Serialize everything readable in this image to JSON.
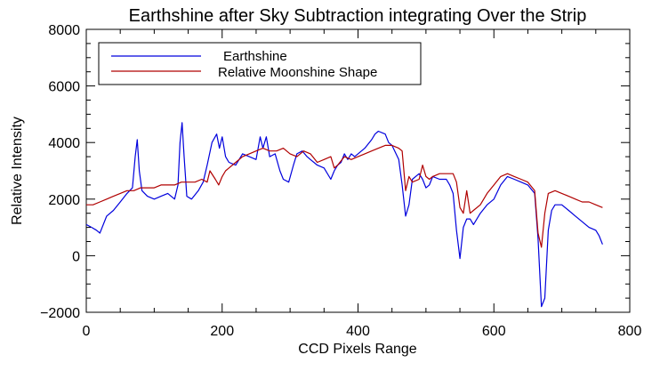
{
  "chart_data": {
    "type": "line",
    "title": "Earthshine after Sky Subtraction integrating Over the Strip",
    "xlabel": "CCD Pixels Range",
    "ylabel": "Relative Intensity",
    "xlim": [
      0,
      800
    ],
    "ylim": [
      -2000,
      8000
    ],
    "x_ticks": [
      0,
      200,
      400,
      600,
      800
    ],
    "y_ticks": [
      -2000,
      0,
      2000,
      4000,
      6000,
      8000
    ],
    "x_tick_labels": [
      "0",
      "200",
      "400",
      "600",
      "800"
    ],
    "y_tick_labels": [
      "−2000",
      "0",
      "2000",
      "4000",
      "6000",
      "8000"
    ],
    "grid": false,
    "legend_position": "top-left",
    "series": [
      {
        "name": "Earthshine",
        "color": "#0000dd",
        "x": [
          0,
          8,
          15,
          20,
          30,
          40,
          50,
          60,
          68,
          72,
          75,
          78,
          82,
          90,
          100,
          110,
          120,
          130,
          135,
          138,
          141,
          144,
          148,
          155,
          165,
          172,
          178,
          185,
          192,
          196,
          200,
          205,
          210,
          220,
          230,
          240,
          250,
          256,
          260,
          265,
          270,
          278,
          285,
          290,
          298,
          305,
          310,
          318,
          325,
          330,
          340,
          350,
          360,
          365,
          370,
          375,
          380,
          385,
          390,
          395,
          400,
          410,
          420,
          425,
          430,
          440,
          445,
          450,
          460,
          465,
          470,
          475,
          480,
          490,
          495,
          500,
          505,
          510,
          520,
          530,
          535,
          540,
          545,
          550,
          555,
          560,
          565,
          570,
          580,
          590,
          600,
          610,
          620,
          630,
          640,
          650,
          660,
          665,
          670,
          675,
          680,
          685,
          690,
          700,
          710,
          720,
          730,
          740,
          750,
          755,
          760
        ],
        "y": [
          1100,
          1000,
          900,
          800,
          1400,
          1600,
          1900,
          2200,
          2400,
          3500,
          4100,
          3000,
          2300,
          2100,
          2000,
          2100,
          2200,
          2000,
          2500,
          4000,
          4700,
          3500,
          2100,
          2000,
          2300,
          2600,
          3200,
          4000,
          4300,
          3800,
          4200,
          3500,
          3300,
          3200,
          3600,
          3500,
          3400,
          4200,
          3800,
          4200,
          3500,
          3600,
          3000,
          2700,
          2600,
          3200,
          3600,
          3700,
          3500,
          3400,
          3200,
          3100,
          2700,
          3000,
          3200,
          3300,
          3600,
          3400,
          3600,
          3500,
          3600,
          3800,
          4100,
          4300,
          4400,
          4300,
          4000,
          3900,
          3400,
          2500,
          1400,
          1800,
          2700,
          2900,
          2700,
          2400,
          2500,
          2800,
          2700,
          2700,
          2500,
          2200,
          900,
          -100,
          1000,
          1300,
          1300,
          1100,
          1500,
          1800,
          2000,
          2500,
          2800,
          2700,
          2600,
          2500,
          2200,
          600,
          -1800,
          -1500,
          900,
          1600,
          1800,
          1800,
          1600,
          1400,
          1200,
          1000,
          900,
          700,
          400
        ]
      },
      {
        "name": "Relative Moonshine Shape",
        "color": "#b00000",
        "x": [
          0,
          10,
          20,
          30,
          40,
          50,
          60,
          70,
          80,
          90,
          100,
          110,
          120,
          130,
          140,
          150,
          160,
          170,
          178,
          182,
          190,
          195,
          200,
          205,
          210,
          220,
          230,
          240,
          250,
          260,
          270,
          280,
          290,
          300,
          310,
          320,
          330,
          340,
          350,
          360,
          365,
          370,
          380,
          390,
          400,
          410,
          420,
          430,
          440,
          450,
          460,
          465,
          470,
          475,
          480,
          490,
          495,
          500,
          505,
          510,
          520,
          530,
          540,
          545,
          550,
          555,
          560,
          565,
          570,
          580,
          590,
          600,
          610,
          620,
          630,
          640,
          650,
          660,
          665,
          670,
          675,
          680,
          690,
          700,
          710,
          720,
          730,
          740,
          750,
          760
        ],
        "y": [
          1800,
          1800,
          1900,
          2000,
          2100,
          2200,
          2300,
          2300,
          2400,
          2400,
          2400,
          2500,
          2500,
          2500,
          2600,
          2600,
          2600,
          2700,
          2600,
          3000,
          2700,
          2500,
          2800,
          3000,
          3100,
          3300,
          3500,
          3600,
          3700,
          3800,
          3700,
          3700,
          3800,
          3600,
          3500,
          3700,
          3600,
          3300,
          3400,
          3500,
          3100,
          3200,
          3500,
          3400,
          3500,
          3600,
          3700,
          3800,
          3900,
          3900,
          3800,
          3700,
          2300,
          2800,
          2600,
          2700,
          3200,
          2800,
          2700,
          2800,
          2900,
          2900,
          2900,
          2600,
          1700,
          1500,
          2300,
          1500,
          1600,
          1800,
          2200,
          2500,
          2800,
          2900,
          2800,
          2700,
          2600,
          2300,
          800,
          300,
          1500,
          2200,
          2300,
          2200,
          2100,
          2000,
          1900,
          1900,
          1800,
          1700
        ]
      }
    ]
  }
}
